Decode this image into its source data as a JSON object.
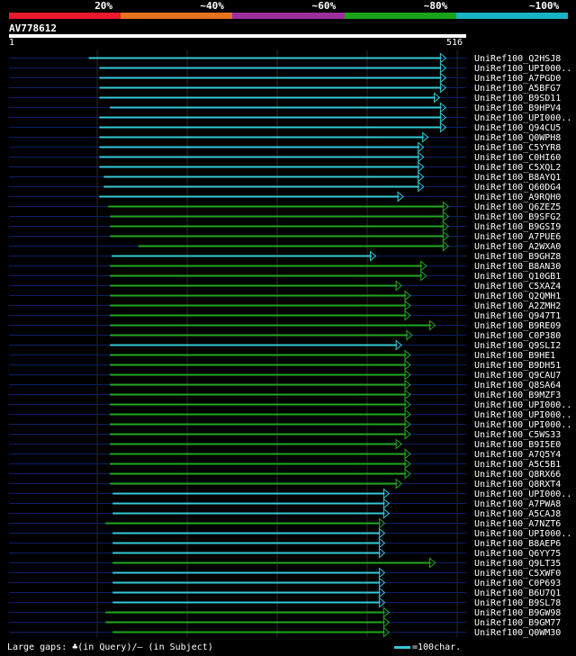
{
  "legend": {
    "bands": [
      {
        "label": "20%",
        "color": "#e8192c"
      },
      {
        "label": "~40%",
        "color": "#e8731e"
      },
      {
        "label": "~60%",
        "color": "#9b2f9e"
      },
      {
        "label": "~80%",
        "color": "#1aa31a"
      },
      {
        "label": "~100%",
        "color": "#19b4c2"
      }
    ]
  },
  "query": {
    "id": "AV778612",
    "start": "1",
    "end": "516"
  },
  "footer": {
    "gaps_text": "Large gaps: ♣(in Query)/– (in Subject)",
    "scale_text": "=100char."
  },
  "chart_data": {
    "type": "alignment",
    "query_length": 516,
    "hits": [
      {
        "name": "UniRef100_Q2HSJ8",
        "start": 90,
        "end": 493,
        "identity": "~100%"
      },
      {
        "name": "UniRef100_UPI000..",
        "start": 102,
        "end": 493,
        "identity": "~100%"
      },
      {
        "name": "UniRef100_A7PGD0",
        "start": 102,
        "end": 493,
        "identity": "~100%"
      },
      {
        "name": "UniRef100_A5BFG7",
        "start": 102,
        "end": 493,
        "identity": "~100%"
      },
      {
        "name": "UniRef100_B9SD11",
        "start": 102,
        "end": 486,
        "identity": "~100%"
      },
      {
        "name": "UniRef100_B9HPV4",
        "start": 114,
        "end": 493,
        "identity": "~100%"
      },
      {
        "name": "UniRef100_UPI000..",
        "start": 102,
        "end": 493,
        "identity": "~100%"
      },
      {
        "name": "UniRef100_Q94CU5",
        "start": 102,
        "end": 493,
        "identity": "~100%"
      },
      {
        "name": "UniRef100_Q0WPH8",
        "start": 102,
        "end": 473,
        "identity": "~100%"
      },
      {
        "name": "UniRef100_C5YYR8",
        "start": 102,
        "end": 468,
        "identity": "~100%"
      },
      {
        "name": "UniRef100_C0HI60",
        "start": 102,
        "end": 468,
        "identity": "~100%"
      },
      {
        "name": "UniRef100_C5XQL2",
        "start": 102,
        "end": 468,
        "identity": "~100%"
      },
      {
        "name": "UniRef100_B8AYQ1",
        "start": 107,
        "end": 468,
        "identity": "~100%"
      },
      {
        "name": "UniRef100_Q60DG4",
        "start": 107,
        "end": 468,
        "identity": "~100%"
      },
      {
        "name": "UniRef100_A9RQH0",
        "start": 102,
        "end": 445,
        "identity": "~100%"
      },
      {
        "name": "UniRef100_Q6ZEZ5",
        "start": 112,
        "end": 496,
        "identity": "~80%"
      },
      {
        "name": "UniRef100_B9SFG2",
        "start": 114,
        "end": 496,
        "identity": "~80%"
      },
      {
        "name": "UniRef100_B9GSI9",
        "start": 114,
        "end": 496,
        "identity": "~80%"
      },
      {
        "name": "UniRef100_A7PUE6",
        "start": 114,
        "end": 496,
        "identity": "~80%"
      },
      {
        "name": "UniRef100_A2WXA0",
        "start": 146,
        "end": 496,
        "identity": "~80%"
      },
      {
        "name": "UniRef100_B9GHZ8",
        "start": 116,
        "end": 414,
        "identity": "~100%"
      },
      {
        "name": "UniRef100_B8AN30",
        "start": 114,
        "end": 471,
        "identity": "~80%"
      },
      {
        "name": "UniRef100_Q10GB1",
        "start": 114,
        "end": 471,
        "identity": "~80%"
      },
      {
        "name": "UniRef100_C5XAZ4",
        "start": 114,
        "end": 443,
        "identity": "~80%"
      },
      {
        "name": "UniRef100_Q2QMH1",
        "start": 114,
        "end": 453,
        "identity": "~80%"
      },
      {
        "name": "UniRef100_A2ZMH2",
        "start": 114,
        "end": 453,
        "identity": "~80%"
      },
      {
        "name": "UniRef100_Q947T1",
        "start": 114,
        "end": 453,
        "identity": "~80%"
      },
      {
        "name": "UniRef100_B9RE09",
        "start": 114,
        "end": 481,
        "identity": "~80%"
      },
      {
        "name": "UniRef100_C0P380",
        "start": 114,
        "end": 455,
        "identity": "~80%"
      },
      {
        "name": "UniRef100_Q9SLI2",
        "start": 114,
        "end": 443,
        "identity": "~100%"
      },
      {
        "name": "UniRef100_B9HE1",
        "start": 114,
        "end": 453,
        "identity": "~80%"
      },
      {
        "name": "UniRef100_B9DH51",
        "start": 114,
        "end": 453,
        "identity": "~80%"
      },
      {
        "name": "UniRef100_Q9CAU7",
        "start": 114,
        "end": 453,
        "identity": "~80%"
      },
      {
        "name": "UniRef100_Q8SA64",
        "start": 114,
        "end": 453,
        "identity": "~80%"
      },
      {
        "name": "UniRef100_B9MZF3",
        "start": 114,
        "end": 453,
        "identity": "~80%"
      },
      {
        "name": "UniRef100_UPI000..",
        "start": 114,
        "end": 453,
        "identity": "~80%"
      },
      {
        "name": "UniRef100_UPI000..",
        "start": 114,
        "end": 453,
        "identity": "~80%"
      },
      {
        "name": "UniRef100_UPI000..",
        "start": 114,
        "end": 453,
        "identity": "~80%"
      },
      {
        "name": "UniRef100_C5WS33",
        "start": 114,
        "end": 453,
        "identity": "~80%"
      },
      {
        "name": "UniRef100_B9I5E0",
        "start": 114,
        "end": 443,
        "identity": "~80%"
      },
      {
        "name": "UniRef100_A7Q5Y4",
        "start": 114,
        "end": 453,
        "identity": "~80%"
      },
      {
        "name": "UniRef100_A5C5B1",
        "start": 114,
        "end": 453,
        "identity": "~80%"
      },
      {
        "name": "UniRef100_Q8RX66",
        "start": 114,
        "end": 453,
        "identity": "~80%"
      },
      {
        "name": "UniRef100_Q8RXT4",
        "start": 114,
        "end": 443,
        "identity": "~80%"
      },
      {
        "name": "UniRef100_UPI000..",
        "start": 117,
        "end": 429,
        "identity": "~100%"
      },
      {
        "name": "UniRef100_A7PWA8",
        "start": 117,
        "end": 429,
        "identity": "~100%"
      },
      {
        "name": "UniRef100_A5CAJ8",
        "start": 117,
        "end": 429,
        "identity": "~100%"
      },
      {
        "name": "UniRef100_A7NZT6",
        "start": 109,
        "end": 424,
        "identity": "~80%"
      },
      {
        "name": "UniRef100_UPI000..",
        "start": 117,
        "end": 424,
        "identity": "~100%"
      },
      {
        "name": "UniRef100_B8AEP6",
        "start": 117,
        "end": 424,
        "identity": "~100%"
      },
      {
        "name": "UniRef100_Q6YY75",
        "start": 117,
        "end": 424,
        "identity": "~100%"
      },
      {
        "name": "UniRef100_Q9LT35",
        "start": 117,
        "end": 481,
        "identity": "~80%"
      },
      {
        "name": "UniRef100_C5XWF0",
        "start": 117,
        "end": 424,
        "identity": "~100%"
      },
      {
        "name": "UniRef100_C0P693",
        "start": 117,
        "end": 424,
        "identity": "~100%"
      },
      {
        "name": "UniRef100_B6U7Q1",
        "start": 117,
        "end": 424,
        "identity": "~100%"
      },
      {
        "name": "UniRef100_B9SL78",
        "start": 117,
        "end": 424,
        "identity": "~100%"
      },
      {
        "name": "UniRef100_B9GW98",
        "start": 109,
        "end": 429,
        "identity": "~80%"
      },
      {
        "name": "UniRef100_B9GM77",
        "start": 109,
        "end": 429,
        "identity": "~80%"
      },
      {
        "name": "UniRef100_Q0WM30",
        "start": 117,
        "end": 429,
        "identity": "~80%"
      }
    ]
  }
}
